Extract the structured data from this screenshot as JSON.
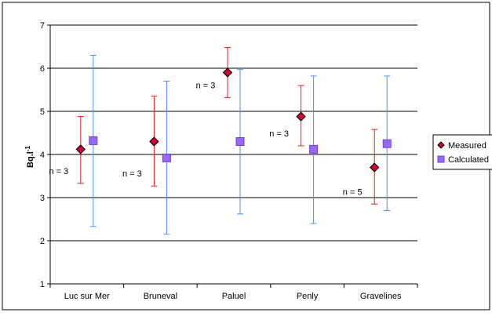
{
  "chart_data": {
    "type": "scatter",
    "title": "",
    "xlabel": "",
    "ylabel": "Bq.l",
    "ylabel_superscript": "-1",
    "ylim": [
      1,
      7
    ],
    "yticks": [
      "1",
      "2",
      "3",
      "4",
      "5",
      "6",
      "7"
    ],
    "grid": true,
    "legend_position": "right",
    "categories": [
      "Luc sur Mer",
      "Bruneval",
      "Paluel",
      "Penly",
      "Gravelines"
    ],
    "series": [
      {
        "name": "Measured",
        "marker": "diamond",
        "color": "#CC0033",
        "errorColor": "#E02020",
        "values": [
          4.12,
          4.3,
          5.9,
          4.88,
          3.7
        ],
        "lower": [
          3.33,
          3.27,
          5.32,
          4.2,
          2.85
        ],
        "upper": [
          4.88,
          5.35,
          6.48,
          5.6,
          4.58
        ]
      },
      {
        "name": "Calculated",
        "marker": "square",
        "color": "#9966FF",
        "errorColor": "#4F8FE6",
        "values": [
          4.32,
          3.92,
          4.3,
          4.12,
          4.25
        ],
        "lower": [
          2.33,
          2.15,
          2.62,
          2.4,
          2.7
        ],
        "upper": [
          6.3,
          5.7,
          5.97,
          5.82,
          5.82
        ]
      }
    ],
    "annotations": [
      {
        "text": "n = 3",
        "category": 0
      },
      {
        "text": "n = 3",
        "category": 1
      },
      {
        "text": "n = 3",
        "category": 2
      },
      {
        "text": "n = 3",
        "category": 3
      },
      {
        "text": "n = 5",
        "category": 4
      }
    ]
  }
}
